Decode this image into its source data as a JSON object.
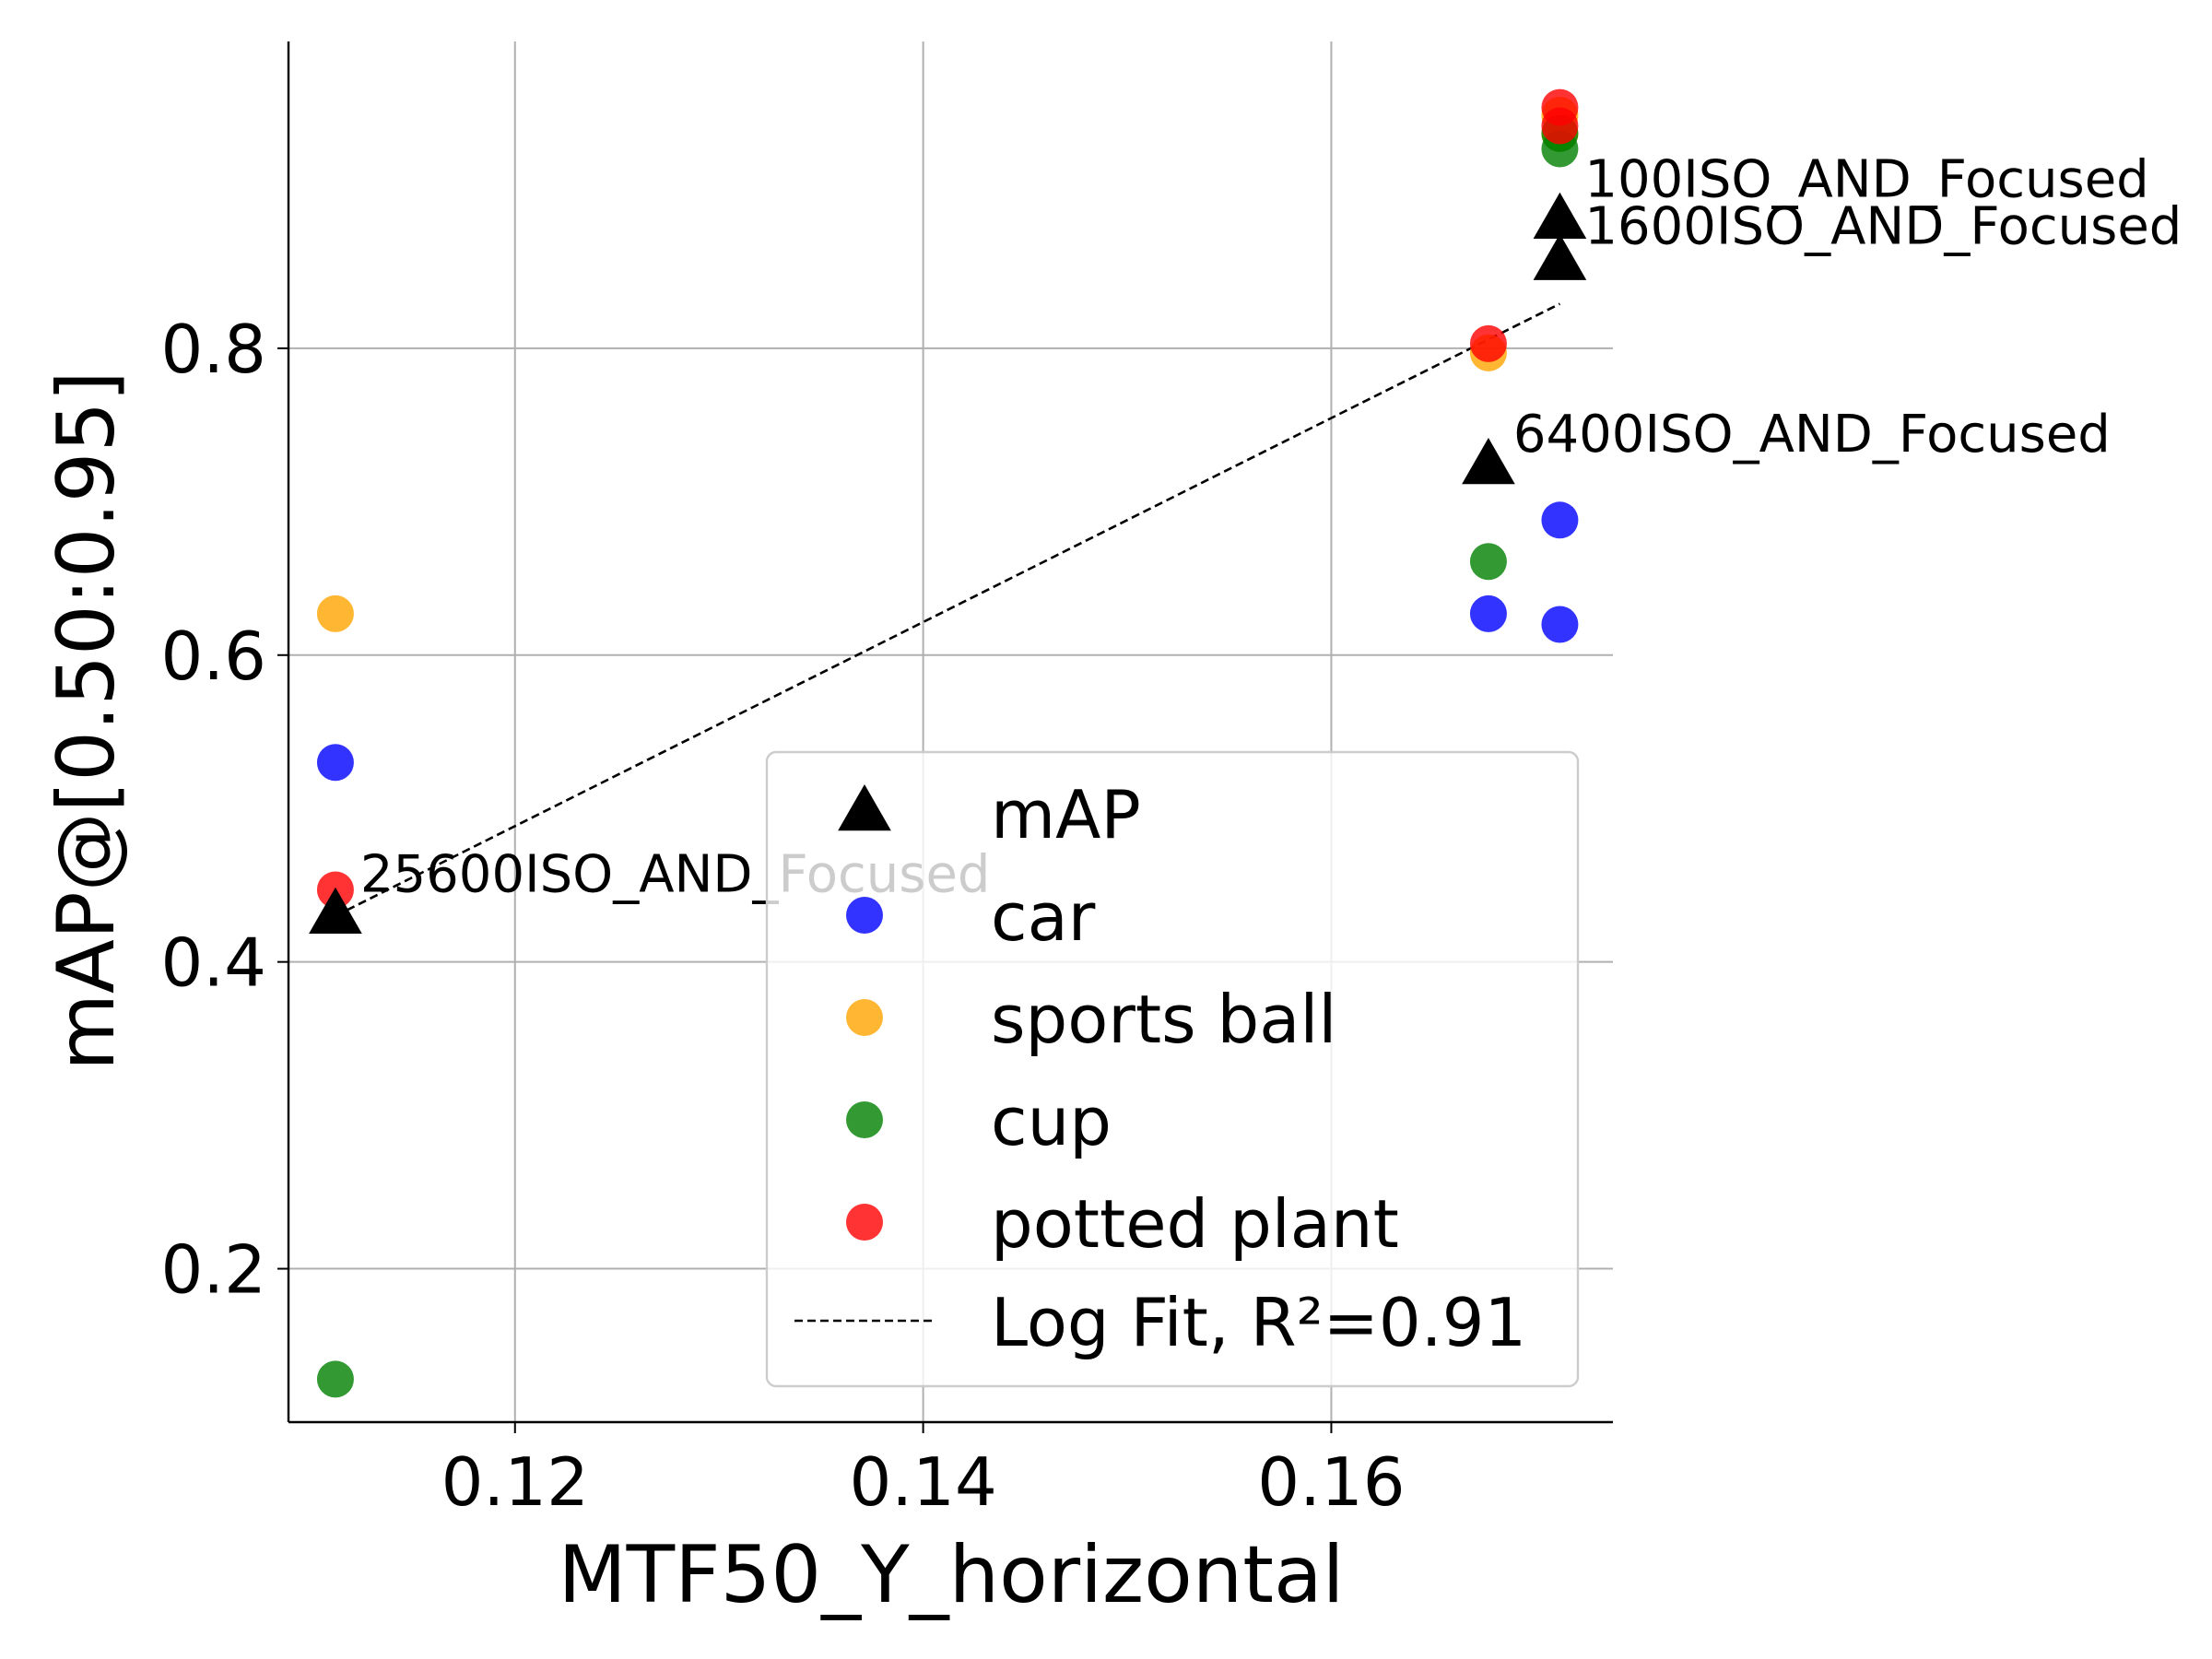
{
  "chart_data": {
    "type": "scatter",
    "xlabel": "MTF50_Y_horizontal",
    "ylabel": "mAP@[0.50:0.95]",
    "xlim": [
      0.1089,
      0.1738
    ],
    "ylim": [
      0.1,
      1.0
    ],
    "xticks": [
      0.12,
      0.14,
      0.16
    ],
    "yticks": [
      0.2,
      0.4,
      0.6,
      0.8
    ],
    "xtick_labels": [
      "0.12",
      "0.14",
      "0.16"
    ],
    "ytick_labels": [
      "0.2",
      "0.4",
      "0.6",
      "0.8"
    ],
    "grid": true,
    "legend_position": "lower-right",
    "series": [
      {
        "key": "mAP",
        "name": "mAP",
        "marker": "triangle",
        "color": "#000000",
        "x": [
          0.1112,
          0.1677,
          0.1712,
          0.1712
        ],
        "y": [
          0.43,
          0.723,
          0.883,
          0.856
        ]
      },
      {
        "key": "car",
        "name": "car",
        "marker": "circle",
        "color": "#0000ff",
        "x": [
          0.1112,
          0.1677,
          0.1712,
          0.1712
        ],
        "y": [
          0.53,
          0.627,
          0.688,
          0.62
        ]
      },
      {
        "key": "sports_ball",
        "name": "sports ball",
        "marker": "circle",
        "color": "#ffa500",
        "x": [
          0.1112,
          0.1677,
          0.1712,
          0.1712
        ],
        "y": [
          0.627,
          0.797,
          0.952,
          0.94
        ]
      },
      {
        "key": "cup",
        "name": "cup",
        "marker": "circle",
        "color": "#008000",
        "x": [
          0.1112,
          0.1677,
          0.1712,
          0.1712
        ],
        "y": [
          0.128,
          0.661,
          0.94,
          0.93
        ]
      },
      {
        "key": "potted_plant",
        "name": "potted plant",
        "marker": "circle",
        "color": "#ff0000",
        "x": [
          0.1112,
          0.1677,
          0.1712,
          0.1712
        ],
        "y": [
          0.447,
          0.803,
          0.957,
          0.945
        ]
      }
    ],
    "fit": {
      "name": "Log Fit, R²=0.91",
      "style": "dashed",
      "color": "#000000",
      "x": [
        0.1112,
        0.1712
      ],
      "y": [
        0.43,
        0.829
      ]
    },
    "annotations": [
      {
        "text": "25600ISO_AND_Focused",
        "x": 0.1112,
        "y": 0.43
      },
      {
        "text": "6400ISO_AND_Focused",
        "x": 0.1677,
        "y": 0.723
      },
      {
        "text": "100ISO_AND_Focused",
        "x": 0.1712,
        "y": 0.883
      },
      {
        "text": "1600ISO_AND_Focused",
        "x": 0.1712,
        "y": 0.856
      }
    ]
  }
}
